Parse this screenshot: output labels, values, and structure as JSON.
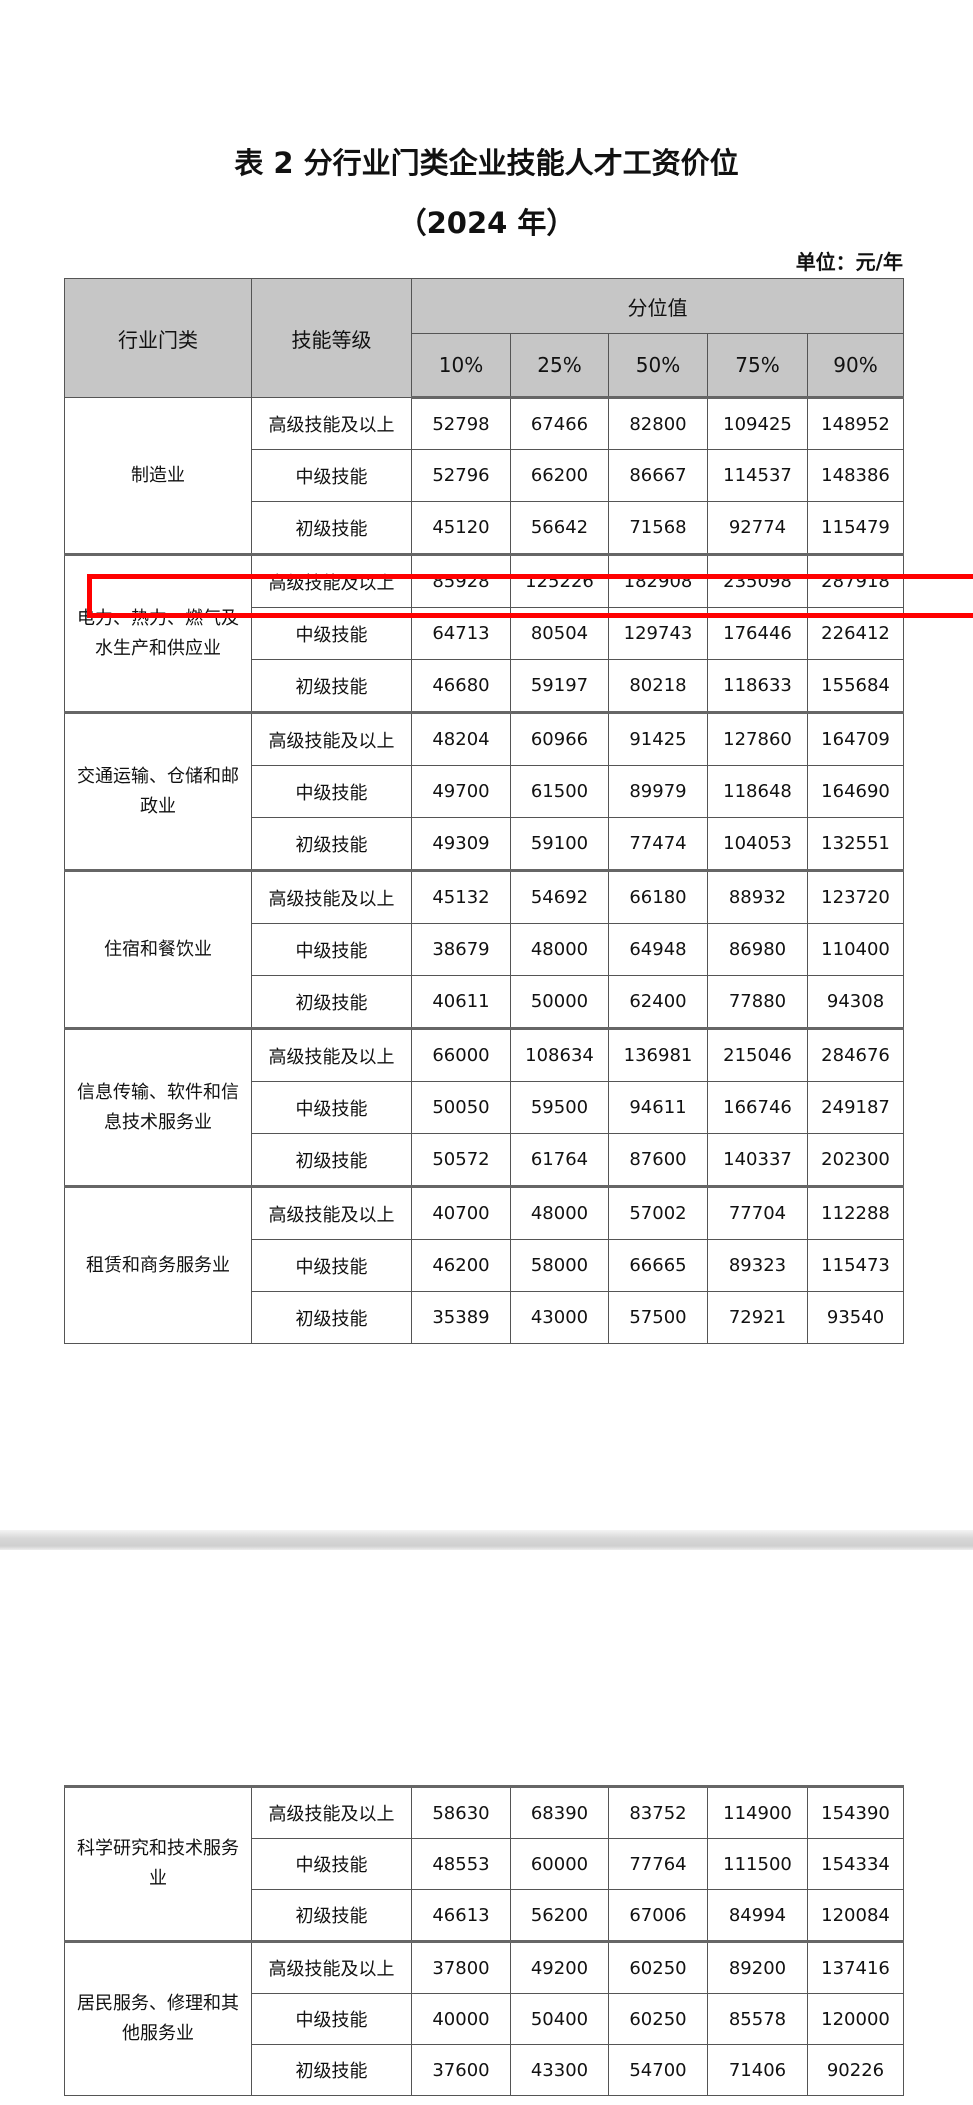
{
  "title": "表 2  分行业门类企业技能人才工资价位",
  "subtitle": "（2024 年）",
  "unit": "单位：元/年",
  "headers": {
    "industry": "行业门类",
    "skill": "技能等级",
    "percentile_group": "分位值",
    "percentiles": [
      "10%",
      "25%",
      "50%",
      "75%",
      "90%"
    ]
  },
  "highlight_color": "#ff0000",
  "table1": [
    {
      "industry": "制造业",
      "rows": [
        {
          "skill": "高级技能及以上",
          "values": [
            "52798",
            "67466",
            "82800",
            "109425",
            "148952"
          ]
        },
        {
          "skill": "中级技能",
          "values": [
            "52796",
            "66200",
            "86667",
            "114537",
            "148386"
          ]
        },
        {
          "skill": "初级技能",
          "values": [
            "45120",
            "56642",
            "71568",
            "92774",
            "115479"
          ]
        }
      ]
    },
    {
      "industry": "电力、热力、燃气及水生产和供应业",
      "rows": [
        {
          "skill": "高级技能及以上",
          "values": [
            "85928",
            "125226",
            "182908",
            "235098",
            "287918"
          ]
        },
        {
          "skill": "中级技能",
          "values": [
            "64713",
            "80504",
            "129743",
            "176446",
            "226412"
          ]
        },
        {
          "skill": "初级技能",
          "values": [
            "46680",
            "59197",
            "80218",
            "118633",
            "155684"
          ]
        }
      ]
    },
    {
      "industry": "交通运输、仓储和邮政业",
      "rows": [
        {
          "skill": "高级技能及以上",
          "values": [
            "48204",
            "60966",
            "91425",
            "127860",
            "164709"
          ]
        },
        {
          "skill": "中级技能",
          "values": [
            "49700",
            "61500",
            "89979",
            "118648",
            "164690"
          ]
        },
        {
          "skill": "初级技能",
          "values": [
            "49309",
            "59100",
            "77474",
            "104053",
            "132551"
          ]
        }
      ]
    },
    {
      "industry": "住宿和餐饮业",
      "rows": [
        {
          "skill": "高级技能及以上",
          "values": [
            "45132",
            "54692",
            "66180",
            "88932",
            "123720"
          ]
        },
        {
          "skill": "中级技能",
          "values": [
            "38679",
            "48000",
            "64948",
            "86980",
            "110400"
          ]
        },
        {
          "skill": "初级技能",
          "values": [
            "40611",
            "50000",
            "62400",
            "77880",
            "94308"
          ]
        }
      ]
    },
    {
      "industry": "信息传输、软件和信息技术服务业",
      "rows": [
        {
          "skill": "高级技能及以上",
          "values": [
            "66000",
            "108634",
            "136981",
            "215046",
            "284676"
          ]
        },
        {
          "skill": "中级技能",
          "values": [
            "50050",
            "59500",
            "94611",
            "166746",
            "249187"
          ]
        },
        {
          "skill": "初级技能",
          "values": [
            "50572",
            "61764",
            "87600",
            "140337",
            "202300"
          ]
        }
      ]
    },
    {
      "industry": "租赁和商务服务业",
      "rows": [
        {
          "skill": "高级技能及以上",
          "values": [
            "40700",
            "48000",
            "57002",
            "77704",
            "112288"
          ]
        },
        {
          "skill": "中级技能",
          "values": [
            "46200",
            "58000",
            "66665",
            "89323",
            "115473"
          ]
        },
        {
          "skill": "初级技能",
          "values": [
            "35389",
            "43000",
            "57500",
            "72921",
            "93540"
          ]
        }
      ]
    }
  ],
  "table2": [
    {
      "industry": "科学研究和技术服务业",
      "rows": [
        {
          "skill": "高级技能及以上",
          "values": [
            "58630",
            "68390",
            "83752",
            "114900",
            "154390"
          ]
        },
        {
          "skill": "中级技能",
          "values": [
            "48553",
            "60000",
            "77764",
            "111500",
            "154334"
          ]
        },
        {
          "skill": "初级技能",
          "values": [
            "46613",
            "56200",
            "67006",
            "84994",
            "120084"
          ]
        }
      ]
    },
    {
      "industry": "居民服务、修理和其他服务业",
      "rows": [
        {
          "skill": "高级技能及以上",
          "values": [
            "37800",
            "49200",
            "60250",
            "89200",
            "137416"
          ]
        },
        {
          "skill": "中级技能",
          "values": [
            "40000",
            "50400",
            "60250",
            "85578",
            "120000"
          ]
        },
        {
          "skill": "初级技能",
          "values": [
            "37600",
            "43300",
            "54700",
            "71406",
            "90226"
          ]
        }
      ]
    }
  ]
}
